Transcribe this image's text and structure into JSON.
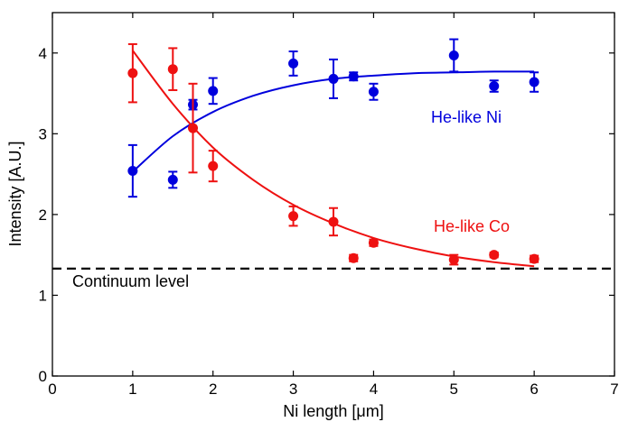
{
  "chart_data": {
    "type": "scatter",
    "xlabel": "Ni length [μm]",
    "ylabel": "Intensity [A.U.]",
    "xlim": [
      0,
      7
    ],
    "ylim": [
      0,
      4.5
    ],
    "xticks": [
      0,
      1,
      2,
      3,
      4,
      5,
      6,
      7
    ],
    "yticks": [
      0,
      1,
      2,
      3,
      4
    ],
    "grid": false,
    "series": [
      {
        "name": "He-like Ni",
        "color": "#0000dd",
        "x": [
          1,
          1.5,
          1.75,
          2,
          3,
          3.5,
          3.75,
          4,
          5,
          5.5,
          6
        ],
        "y": [
          2.54,
          2.43,
          3.36,
          3.53,
          3.87,
          3.68,
          3.71,
          3.52,
          3.97,
          3.59,
          3.64
        ],
        "err": [
          0.32,
          0.1,
          0.06,
          0.16,
          0.15,
          0.24,
          0.05,
          0.1,
          0.2,
          0.07,
          0.12
        ],
        "fit": [
          [
            1,
            2.53
          ],
          [
            1.5,
            2.97
          ],
          [
            2,
            3.27
          ],
          [
            2.5,
            3.47
          ],
          [
            3,
            3.6
          ],
          [
            3.5,
            3.68
          ],
          [
            4,
            3.72
          ],
          [
            4.5,
            3.75
          ],
          [
            5,
            3.76
          ],
          [
            5.5,
            3.77
          ],
          [
            6,
            3.77
          ]
        ]
      },
      {
        "name": "He-like Co",
        "color": "#ee1111",
        "x": [
          1,
          1.5,
          1.75,
          2,
          3,
          3.5,
          3.75,
          4,
          5,
          5.5,
          6
        ],
        "y": [
          3.75,
          3.8,
          3.07,
          2.6,
          1.98,
          1.91,
          1.46,
          1.65,
          1.44,
          1.5,
          1.45
        ],
        "err": [
          0.36,
          0.26,
          0.55,
          0.19,
          0.12,
          0.17,
          0.04,
          0.04,
          0.06,
          0.03,
          0.04
        ],
        "fit": [
          [
            1,
            4.03
          ],
          [
            1.5,
            3.37
          ],
          [
            2,
            2.83
          ],
          [
            2.5,
            2.43
          ],
          [
            3,
            2.12
          ],
          [
            3.5,
            1.89
          ],
          [
            4,
            1.71
          ],
          [
            4.5,
            1.58
          ],
          [
            5,
            1.48
          ],
          [
            5.5,
            1.41
          ],
          [
            6,
            1.36
          ]
        ]
      }
    ],
    "reference_line": {
      "y": 1.33,
      "label": "Continuum level",
      "style": "dashed"
    }
  }
}
